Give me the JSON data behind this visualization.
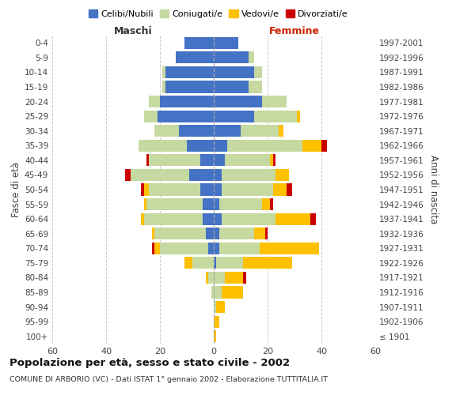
{
  "age_groups": [
    "100+",
    "95-99",
    "90-94",
    "85-89",
    "80-84",
    "75-79",
    "70-74",
    "65-69",
    "60-64",
    "55-59",
    "50-54",
    "45-49",
    "40-44",
    "35-39",
    "30-34",
    "25-29",
    "20-24",
    "15-19",
    "10-14",
    "5-9",
    "0-4"
  ],
  "birth_years": [
    "≤ 1901",
    "1902-1906",
    "1907-1911",
    "1912-1916",
    "1917-1921",
    "1922-1926",
    "1927-1931",
    "1932-1936",
    "1937-1941",
    "1942-1946",
    "1947-1951",
    "1952-1956",
    "1957-1961",
    "1962-1966",
    "1967-1971",
    "1972-1976",
    "1977-1981",
    "1982-1986",
    "1987-1991",
    "1992-1996",
    "1997-2001"
  ],
  "male": {
    "celibi": [
      0,
      0,
      0,
      0,
      0,
      0,
      2,
      3,
      4,
      4,
      5,
      9,
      5,
      10,
      13,
      21,
      20,
      18,
      18,
      14,
      11
    ],
    "coniugati": [
      0,
      0,
      0,
      1,
      2,
      8,
      18,
      19,
      22,
      21,
      19,
      22,
      19,
      18,
      9,
      5,
      4,
      1,
      1,
      0,
      0
    ],
    "vedovi": [
      0,
      0,
      0,
      0,
      1,
      3,
      2,
      1,
      1,
      1,
      2,
      0,
      0,
      0,
      0,
      0,
      0,
      0,
      0,
      0,
      0
    ],
    "divorziati": [
      0,
      0,
      0,
      0,
      0,
      0,
      1,
      0,
      0,
      0,
      1,
      2,
      1,
      0,
      0,
      0,
      0,
      0,
      0,
      0,
      0
    ]
  },
  "female": {
    "nubili": [
      0,
      0,
      0,
      0,
      0,
      1,
      2,
      2,
      3,
      2,
      3,
      3,
      4,
      5,
      10,
      15,
      18,
      13,
      15,
      13,
      9
    ],
    "coniugate": [
      0,
      0,
      1,
      3,
      4,
      10,
      15,
      13,
      20,
      16,
      19,
      20,
      17,
      28,
      14,
      16,
      9,
      5,
      3,
      2,
      0
    ],
    "vedove": [
      1,
      2,
      3,
      8,
      7,
      18,
      22,
      4,
      13,
      3,
      5,
      5,
      1,
      7,
      2,
      1,
      0,
      0,
      0,
      0,
      0
    ],
    "divorziate": [
      0,
      0,
      0,
      0,
      1,
      0,
      0,
      1,
      2,
      1,
      2,
      0,
      1,
      2,
      0,
      0,
      0,
      0,
      0,
      0,
      0
    ]
  },
  "colors": {
    "celibi_nubili": "#4472c4",
    "coniugati": "#c5d9a0",
    "vedovi": "#ffc000",
    "divorziati": "#cc0000"
  },
  "title": "Popolazione per età, sesso e stato civile - 2002",
  "subtitle": "COMUNE DI ARBORIO (VC) - Dati ISTAT 1° gennaio 2002 - Elaborazione TUTTITALIA.IT",
  "ylabel_left": "Fasce di età",
  "ylabel_right": "Anni di nascita",
  "xlim": 60,
  "background_color": "#ffffff",
  "grid_color": "#cccccc",
  "maschi_label": "Maschi",
  "femmine_label": "Femmine"
}
